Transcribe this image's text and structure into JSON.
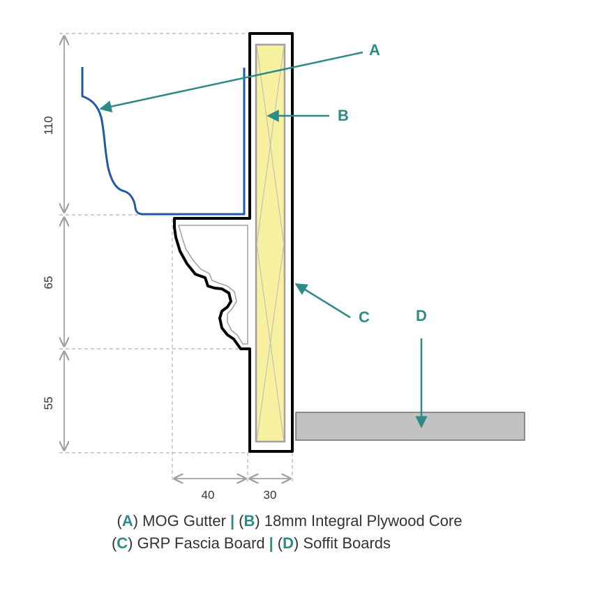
{
  "dimensions": {
    "height_top": "110",
    "height_mid": "65",
    "height_bottom": "55",
    "width_left": "40",
    "width_right": "30"
  },
  "callouts": {
    "a": "A",
    "b": "B",
    "c": "C",
    "d": "D"
  },
  "legend": {
    "a_key": "A",
    "a_text": "MOG Gutter",
    "b_key": "B",
    "b_text": "18mm Integral Plywood Core",
    "c_key": "C",
    "c_text": "GRP Fascia Board",
    "d_key": "D",
    "d_text": "Soffit Boards",
    "separator": "|",
    "open_paren": "(",
    "close_paren": ")"
  },
  "colors": {
    "accent": "#2e8a86",
    "gutter": "#1f5aa6",
    "core_fill": "#f6f0a0",
    "soffit_fill": "#c2c2c2",
    "outline": "#000000"
  }
}
